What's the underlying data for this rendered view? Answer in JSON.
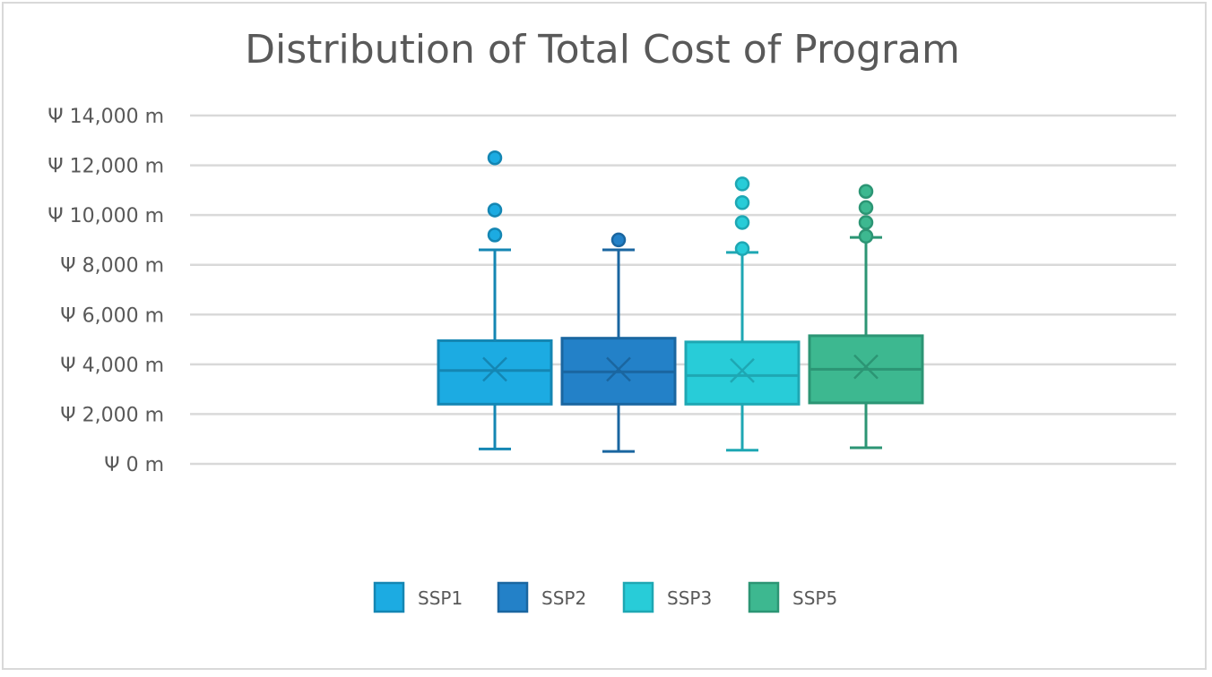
{
  "chart_data": {
    "type": "box",
    "title": "Distribution of Total Cost of Program",
    "xlabel": "",
    "ylabel": "",
    "ylim": [
      0,
      14000
    ],
    "yticks": [
      0,
      2000,
      4000,
      6000,
      8000,
      10000,
      12000,
      14000
    ],
    "ytick_labels": [
      "Ψ 0 m",
      "Ψ 2,000 m",
      "Ψ 4,000 m",
      "Ψ 6,000 m",
      "Ψ 8,000 m",
      "Ψ 10,000 m",
      "Ψ 12,000 m",
      "Ψ 14,000 m"
    ],
    "grid": true,
    "legend": "bottom",
    "series": [
      {
        "name": "SSP1",
        "color": "#1CABE2",
        "edge": "#1486b3",
        "min": 600,
        "q1": 2400,
        "median": 3750,
        "mean": 3800,
        "q3": 4950,
        "max": 8600,
        "outliers": [
          9200,
          10200,
          12300
        ]
      },
      {
        "name": "SSP2",
        "color": "#2381C8",
        "edge": "#1a66a0",
        "min": 500,
        "q1": 2400,
        "median": 3700,
        "mean": 3800,
        "q3": 5050,
        "max": 8600,
        "outliers": [
          9000
        ]
      },
      {
        "name": "SSP3",
        "color": "#28CCD8",
        "edge": "#1ea7b3",
        "min": 550,
        "q1": 2400,
        "median": 3550,
        "mean": 3750,
        "q3": 4900,
        "max": 8500,
        "outliers": [
          8650,
          9700,
          10500,
          11250
        ]
      },
      {
        "name": "SSP5",
        "color": "#3DB890",
        "edge": "#2c9574",
        "min": 650,
        "q1": 2450,
        "median": 3800,
        "mean": 3900,
        "q3": 5150,
        "max": 9100,
        "outliers": [
          9150,
          9700,
          10300,
          10950
        ]
      }
    ]
  }
}
